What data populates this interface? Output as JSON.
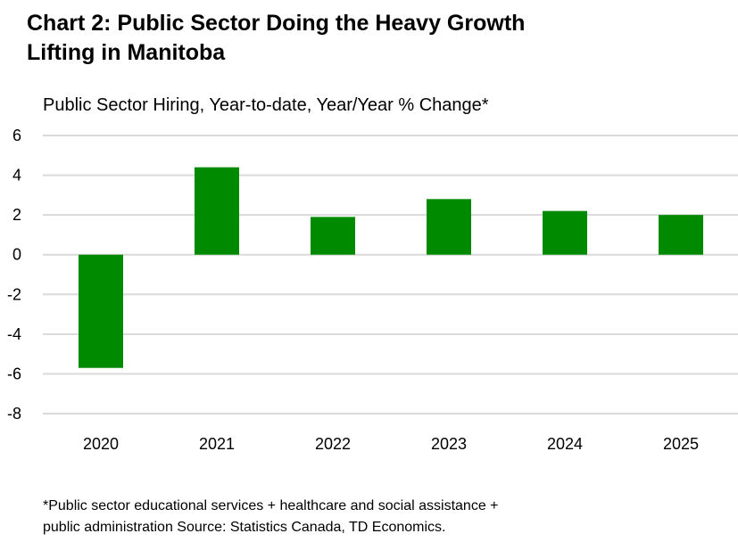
{
  "title_line1": "Chart 2: Public Sector Doing the Heavy Growth",
  "title_line2": "Lifting in Manitoba",
  "footnote_line1": "*Public sector educational services + healthcare and social assistance +",
  "footnote_line2": "public administration Source: Statistics Canada, TD Economics.",
  "chart_data": {
    "type": "bar",
    "title": "Chart 2: Public Sector Doing the Heavy Growth Lifting in Manitoba",
    "subtitle": "Public Sector Hiring, Year-to-date, Year/Year % Change*",
    "xlabel": "",
    "ylabel": "",
    "categories": [
      "2020",
      "2021",
      "2022",
      "2023",
      "2024",
      "2025"
    ],
    "values": [
      -5.7,
      4.4,
      1.9,
      2.8,
      2.2,
      2.0
    ],
    "ylim": [
      -8,
      6
    ],
    "yticks": [
      6,
      4,
      2,
      0,
      -2,
      -4,
      -6,
      -8
    ],
    "ytick_labels": [
      "6",
      "4",
      "2",
      "0",
      "-2",
      "-4",
      "-6",
      "-8"
    ],
    "grid": true,
    "bar_color": "#008a00",
    "grid_color": "#d9d9d9"
  }
}
